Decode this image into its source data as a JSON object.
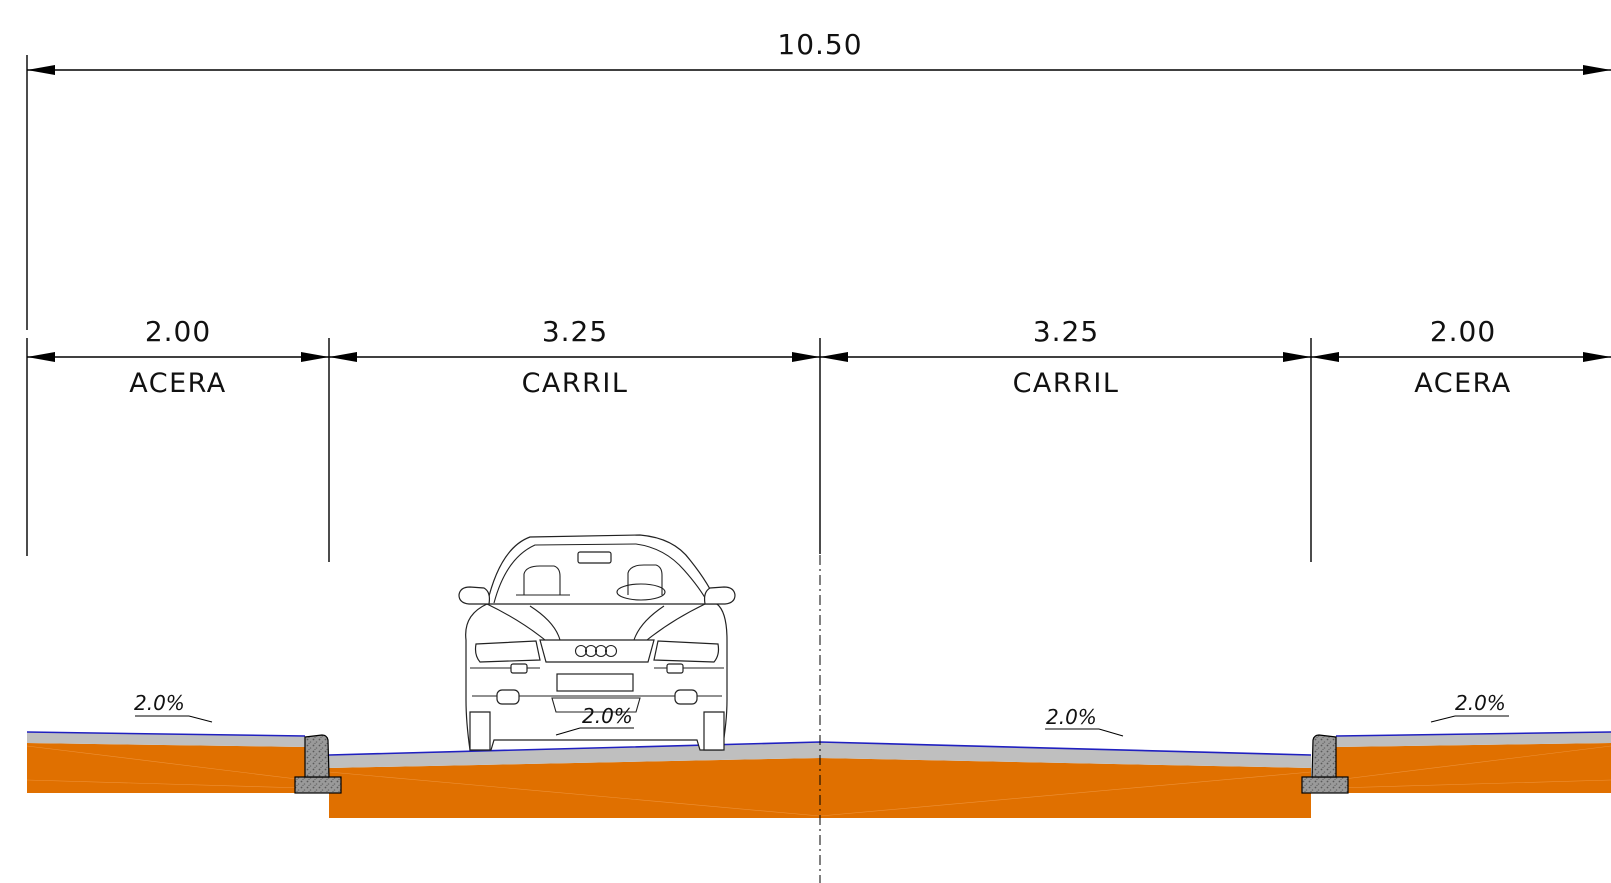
{
  "overall": {
    "dimension": "10.50"
  },
  "sections": [
    {
      "dimension": "2.00",
      "label": "ACERA"
    },
    {
      "dimension": "3.25",
      "label": "CARRIL"
    },
    {
      "dimension": "3.25",
      "label": "CARRIL"
    },
    {
      "dimension": "2.00",
      "label": "ACERA"
    }
  ],
  "slopes": {
    "sidewalk_left": "2.0%",
    "lane_left": "2.0%",
    "lane_right": "2.0%",
    "sidewalk_right": "2.0%"
  },
  "colors": {
    "subbase": "#E07000",
    "pavement": "#BFBFBF",
    "surface_line": "#2020C0",
    "curb": "#9A9A9A",
    "lines": "#000000"
  }
}
